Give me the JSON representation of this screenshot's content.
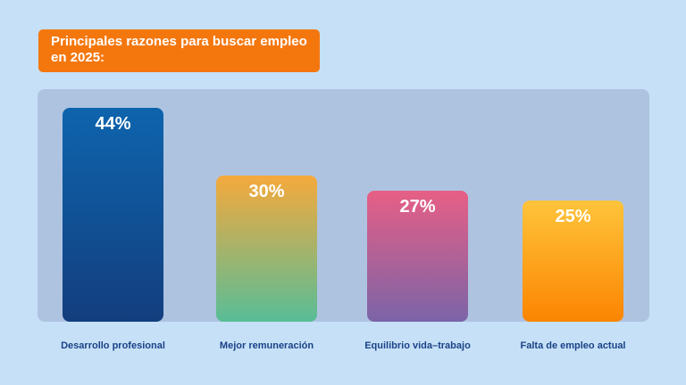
{
  "title": {
    "text": "Principales razones para buscar empleo en 2025:",
    "lines": [
      "Principales razones para buscar empleo",
      "en 2025:"
    ]
  },
  "colors": {
    "page_background": "#c6e0f7",
    "plot_background": "#aec3e0",
    "title_background": "#f4770e",
    "title_text": "#ffffff",
    "value_label_text": "#ffffff",
    "category_label_text": "#1a4287"
  },
  "chart_data": {
    "type": "bar",
    "title": "Principales razones para buscar empleo en 2025:",
    "categories": [
      "Desarrollo profesional",
      "Mejor remuneración",
      "Equilibrio vida–trabajo",
      "Falta de empleo actual"
    ],
    "values": [
      44,
      30,
      27,
      25
    ],
    "value_labels": [
      "44%",
      "30%",
      "27%",
      "25%"
    ],
    "xlabel": "",
    "ylabel": "",
    "ylim": [
      0,
      48
    ],
    "grid": false,
    "legend": "none",
    "bar_gradients": [
      {
        "top": "#0e64ad",
        "bottom": "#133e7e"
      },
      {
        "top": "#f5a93c",
        "bottom": "#58bd97"
      },
      {
        "top": "#e75f85",
        "bottom": "#7b64a8"
      },
      {
        "top": "#ffc43a",
        "bottom": "#fb8502"
      }
    ]
  }
}
